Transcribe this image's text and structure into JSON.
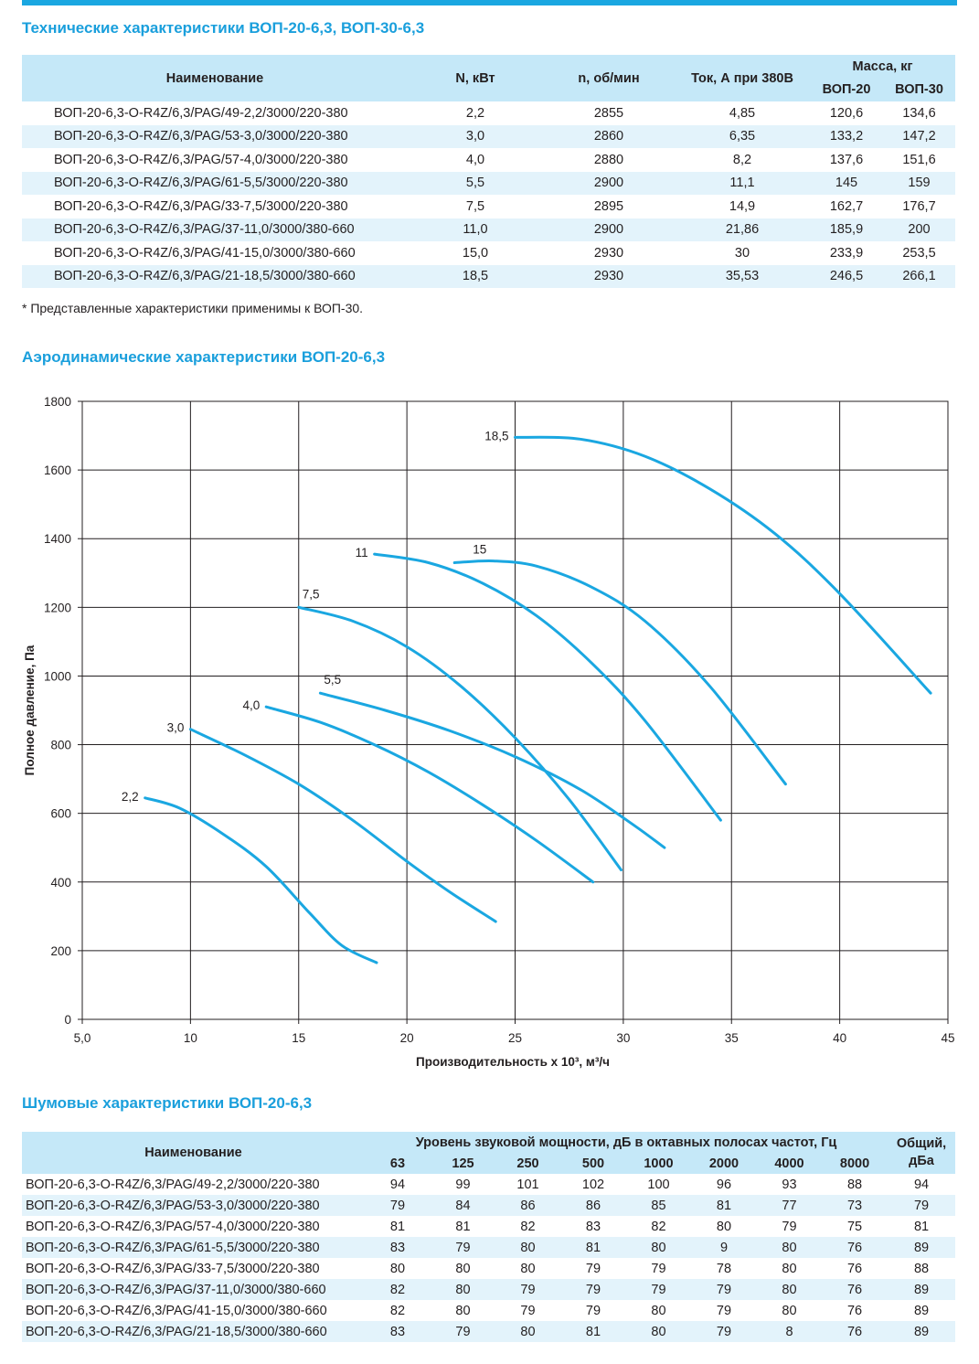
{
  "tech": {
    "title": "Технические характеристики ВОП-20-6,3, ВОП-30-6,3",
    "headers": {
      "name": "Наименование",
      "power": "N, кВт",
      "rpm": "n, об/мин",
      "current": "Ток, А при 380В",
      "mass": "Масса, кг",
      "mass20": "ВОП-20",
      "mass30": "ВОП-30"
    },
    "rows": [
      [
        "ВОП-20-6,3-O-R4Z/6,3/PAG/49-2,2/3000/220-380",
        "2,2",
        "2855",
        "4,85",
        "120,6",
        "134,6"
      ],
      [
        "ВОП-20-6,3-O-R4Z/6,3/PAG/53-3,0/3000/220-380",
        "3,0",
        "2860",
        "6,35",
        "133,2",
        "147,2"
      ],
      [
        "ВОП-20-6,3-O-R4Z/6,3/PAG/57-4,0/3000/220-380",
        "4,0",
        "2880",
        "8,2",
        "137,6",
        "151,6"
      ],
      [
        "ВОП-20-6,3-O-R4Z/6,3/PAG/61-5,5/3000/220-380",
        "5,5",
        "2900",
        "11,1",
        "145",
        "159"
      ],
      [
        "ВОП-20-6,3-O-R4Z/6,3/PAG/33-7,5/3000/220-380",
        "7,5",
        "2895",
        "14,9",
        "162,7",
        "176,7"
      ],
      [
        "ВОП-20-6,3-O-R4Z/6,3/PAG/37-11,0/3000/380-660",
        "11,0",
        "2900",
        "21,86",
        "185,9",
        "200"
      ],
      [
        "ВОП-20-6,3-O-R4Z/6,3/PAG/41-15,0/3000/380-660",
        "15,0",
        "2930",
        "30",
        "233,9",
        "253,5"
      ],
      [
        "ВОП-20-6,3-O-R4Z/6,3/PAG/21-18,5/3000/380-660",
        "18,5",
        "2930",
        "35,53",
        "246,5",
        "266,1"
      ]
    ],
    "note": "* Представленные характеристики применимы к ВОП-30."
  },
  "aero": {
    "title": "Аэродинамические характеристики ВОП-20-6,3"
  },
  "chart_data": {
    "type": "line",
    "xlabel": "Производительность х 10³, м³/ч",
    "ylabel": "Полное давление, Па",
    "xlim": [
      5,
      45
    ],
    "ylim": [
      0,
      1800
    ],
    "xticks": [
      "5,0",
      "10",
      "15",
      "20",
      "25",
      "30",
      "35",
      "40",
      "45"
    ],
    "yticks": [
      "0",
      "200",
      "400",
      "600",
      "800",
      "1000",
      "1200",
      "1400",
      "1600",
      "1800"
    ],
    "grid": true,
    "color": "#1aa7e1",
    "series": [
      {
        "name": "2,2",
        "x": [
          7.9,
          9.5,
          11.5,
          13.5,
          15.5,
          17.0,
          18.6
        ],
        "y": [
          645,
          615,
          540,
          445,
          310,
          215,
          165
        ]
      },
      {
        "name": "3,0",
        "x": [
          10.0,
          12.5,
          15.0,
          17.5,
          20.0,
          22.0,
          24.1
        ],
        "y": [
          845,
          770,
          685,
          580,
          460,
          370,
          285
        ]
      },
      {
        "name": "4,0",
        "x": [
          13.5,
          16.0,
          18.5,
          21.0,
          23.5,
          26.0,
          28.6
        ],
        "y": [
          910,
          865,
          800,
          720,
          625,
          520,
          400
        ]
      },
      {
        "name": "5,5",
        "x": [
          16.0,
          19.0,
          22.0,
          25.0,
          28.0,
          30.5,
          31.9
        ],
        "y": [
          950,
          900,
          840,
          765,
          670,
          565,
          500
        ]
      },
      {
        "name": "7,5",
        "x": [
          15.0,
          17.5,
          20.0,
          22.5,
          25.0,
          27.5,
          29.9
        ],
        "y": [
          1200,
          1160,
          1085,
          970,
          820,
          640,
          435
        ]
      },
      {
        "name": "11",
        "x": [
          18.5,
          21.0,
          23.5,
          26.0,
          28.5,
          31.0,
          34.5
        ],
        "y": [
          1355,
          1330,
          1270,
          1175,
          1040,
          870,
          580
        ]
      },
      {
        "name": "15",
        "x": [
          22.2,
          24.0,
          26.0,
          28.5,
          31.0,
          34.0,
          37.5
        ],
        "y": [
          1330,
          1335,
          1320,
          1260,
          1160,
          970,
          685
        ]
      },
      {
        "name": "18,5",
        "x": [
          25.0,
          28.0,
          31.0,
          34.0,
          37.0,
          40.0,
          44.2
        ],
        "y": [
          1695,
          1690,
          1640,
          1545,
          1415,
          1240,
          950
        ]
      }
    ]
  },
  "noise": {
    "title": "Шумовые характеристики ВОП-20-6,3",
    "headers": {
      "name": "Наименование",
      "level": "Уровень звуковой мощности, дБ в октавных полосах частот, Гц",
      "total": "Общий, дБа",
      "bands": [
        "63",
        "125",
        "250",
        "500",
        "1000",
        "2000",
        "4000",
        "8000"
      ]
    },
    "rows": [
      [
        "ВОП-20-6,3-O-R4Z/6,3/PAG/49-2,2/3000/220-380",
        "94",
        "99",
        "101",
        "102",
        "100",
        "96",
        "93",
        "88",
        "94"
      ],
      [
        "ВОП-20-6,3-O-R4Z/6,3/PAG/53-3,0/3000/220-380",
        "79",
        "84",
        "86",
        "86",
        "85",
        "81",
        "77",
        "73",
        "79"
      ],
      [
        "ВОП-20-6,3-O-R4Z/6,3/PAG/57-4,0/3000/220-380",
        "81",
        "81",
        "82",
        "83",
        "82",
        "80",
        "79",
        "75",
        "81"
      ],
      [
        "ВОП-20-6,3-O-R4Z/6,3/PAG/61-5,5/3000/220-380",
        "83",
        "79",
        "80",
        "81",
        "80",
        "9",
        "80",
        "76",
        "89"
      ],
      [
        "ВОП-20-6,3-O-R4Z/6,3/PAG/33-7,5/3000/220-380",
        "80",
        "80",
        "80",
        "79",
        "79",
        "78",
        "80",
        "76",
        "88"
      ],
      [
        "ВОП-20-6,3-O-R4Z/6,3/PAG/37-11,0/3000/380-660",
        "82",
        "80",
        "79",
        "79",
        "79",
        "79",
        "80",
        "76",
        "89"
      ],
      [
        "ВОП-20-6,3-O-R4Z/6,3/PAG/41-15,0/3000/380-660",
        "82",
        "80",
        "79",
        "79",
        "80",
        "79",
        "80",
        "76",
        "89"
      ],
      [
        "ВОП-20-6,3-O-R4Z/6,3/PAG/21-18,5/3000/380-660",
        "83",
        "79",
        "80",
        "81",
        "80",
        "79",
        "8",
        "76",
        "89"
      ]
    ]
  }
}
